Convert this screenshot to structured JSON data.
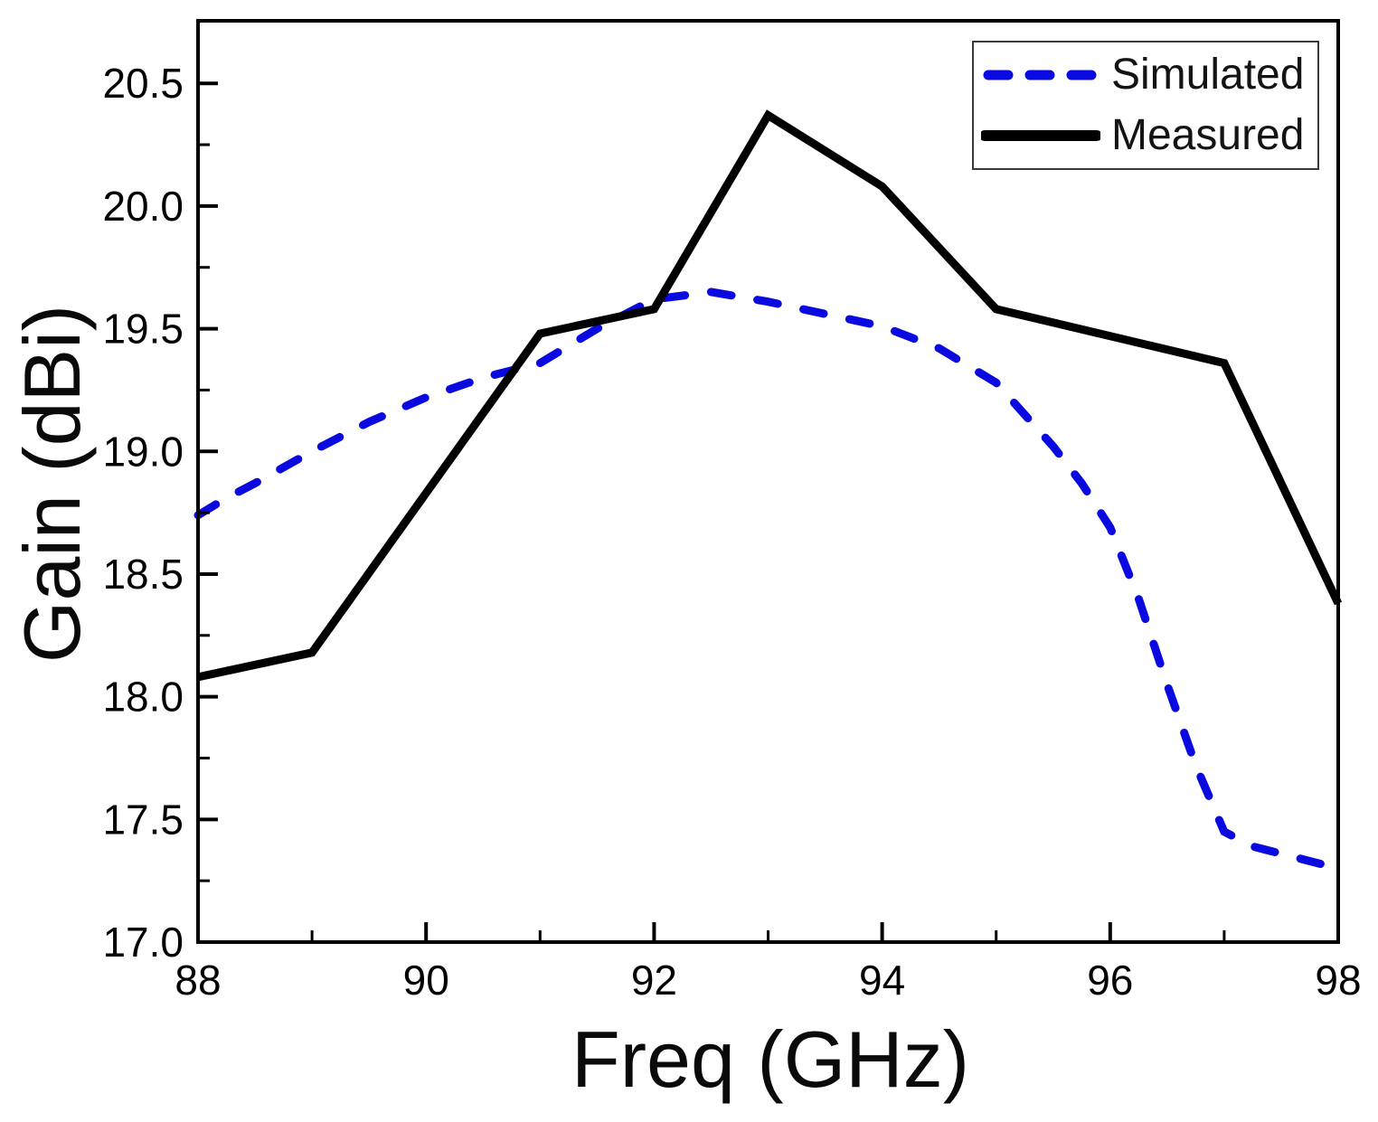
{
  "figure": {
    "xlabel": "Freq (GHz)",
    "ylabel": "Gain (dBi)"
  },
  "legend": {
    "position": "top-right",
    "items": [
      {
        "label": "Simulated",
        "color": "#0a0ae0",
        "style": "dashed"
      },
      {
        "label": "Measured",
        "color": "#000000",
        "style": "solid"
      }
    ]
  },
  "chart_data": {
    "type": "line",
    "title": "",
    "xlabel": "Freq (GHz)",
    "ylabel": "Gain (dBi)",
    "xlim": [
      88,
      98
    ],
    "ylim": [
      17.0,
      20.755
    ],
    "grid": false,
    "legend_position": "top-right",
    "x_tick_labels": [
      "88",
      "90",
      "92",
      "94",
      "96",
      "98"
    ],
    "x_major_ticks": [
      88,
      90,
      92,
      94,
      96,
      98
    ],
    "x_minor_ticks": [
      89,
      91,
      93,
      95,
      97
    ],
    "y_tick_labels": [
      "17.0",
      "17.5",
      "18.0",
      "18.5",
      "19.0",
      "19.5",
      "20.0",
      "20.5"
    ],
    "y_major_ticks": [
      17.0,
      17.5,
      18.0,
      18.5,
      19.0,
      19.5,
      20.0,
      20.5
    ],
    "y_minor_ticks": [
      17.25,
      17.75,
      18.25,
      18.75,
      19.25,
      19.75,
      20.25
    ],
    "series": [
      {
        "name": "Simulated",
        "color": "#0a0ae0",
        "style": "dashed",
        "x": [
          88,
          88.25,
          88.5,
          89,
          89.5,
          90,
          90.5,
          91,
          91.5,
          92,
          92.5,
          93,
          93.5,
          94,
          94.5,
          95,
          95.5,
          95.75,
          96,
          96.25,
          96.5,
          96.75,
          97,
          97.25,
          97.5,
          98
        ],
        "values": [
          18.74,
          18.81,
          18.87,
          19.0,
          19.12,
          19.22,
          19.3,
          19.36,
          19.5,
          19.62,
          19.65,
          19.61,
          19.56,
          19.51,
          19.42,
          19.28,
          19.02,
          18.87,
          18.69,
          18.4,
          18.05,
          17.72,
          17.45,
          17.39,
          17.36,
          17.3
        ]
      },
      {
        "name": "Measured",
        "color": "#000000",
        "style": "solid",
        "x": [
          88,
          89,
          90,
          91,
          92,
          93,
          94,
          95,
          96,
          97,
          98
        ],
        "values": [
          18.08,
          18.18,
          18.83,
          19.48,
          19.58,
          20.37,
          20.08,
          19.58,
          19.47,
          19.36,
          18.38
        ]
      }
    ]
  }
}
